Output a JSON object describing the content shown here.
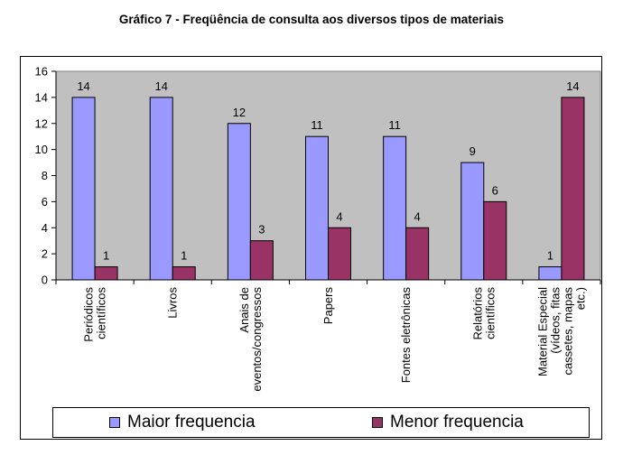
{
  "page_title": "Gráfico 7 - Freqüência de consulta aos diversos tipos de materiais",
  "chart_data": {
    "type": "bar",
    "title": "Gráfico 7 - Freqüência de consulta aos diversos tipos de materiais",
    "xlabel": "",
    "ylabel": "",
    "ylim": [
      0,
      16
    ],
    "yticks": [
      0,
      2,
      4,
      6,
      8,
      10,
      12,
      14,
      16
    ],
    "grid": false,
    "legend_position": "bottom",
    "plot_background": "#c0c0c0",
    "categories": [
      [
        "Periódicos",
        "científicos"
      ],
      [
        "Livros"
      ],
      [
        "Anais de",
        "eventos/congressos"
      ],
      [
        "Papers"
      ],
      [
        "Fontes eletrônicas"
      ],
      [
        "Relatórios",
        "científicos"
      ],
      [
        "Material Especial",
        "(vídeos, fitas",
        "cassetes, mapas",
        "etc.)"
      ]
    ],
    "series": [
      {
        "name": "Maior frequencia",
        "color": "#9999ff",
        "values": [
          14,
          14,
          12,
          11,
          11,
          9,
          1
        ]
      },
      {
        "name": "Menor frequencia",
        "color": "#993366",
        "values": [
          1,
          1,
          3,
          4,
          4,
          6,
          14
        ]
      }
    ]
  }
}
